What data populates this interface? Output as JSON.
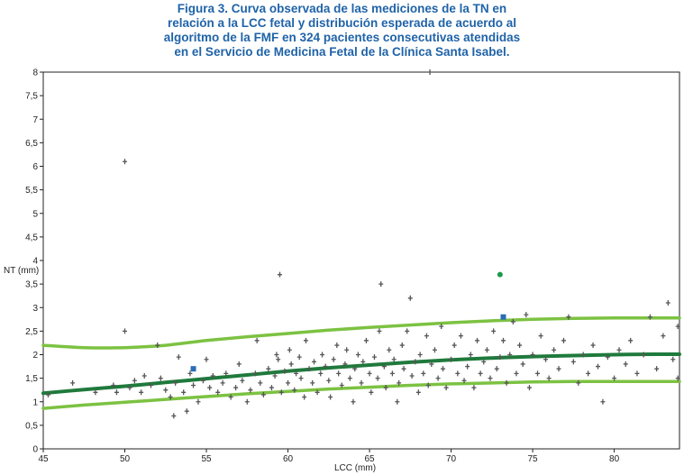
{
  "caption": {
    "lines": [
      "Figura 3. Curva observada de las mediciones de la TN en",
      "relación a la LCC fetal y distribución esperada de acuerdo al",
      "algoritmo de la FMF en 324 pacientes consecutivas atendidas",
      "en el Servicio de Medicina Fetal de la Clínica Santa Isabel."
    ]
  },
  "chart_data": {
    "type": "scatter",
    "title": "Figura 3. Curva observada de las mediciones de la TN en relación a la LCC fetal y distribución esperada de acuerdo al algoritmo de la FMF en 324 pacientes consecutivas atendidas en el Servicio de Medicina Fetal de la Clínica Santa Isabel.",
    "xlabel": "LCC (mm)",
    "ylabel": "NT (mm)",
    "xlim": [
      45,
      84
    ],
    "ylim": [
      0,
      8
    ],
    "x_ticks": [
      "45",
      "50",
      "55",
      "60",
      "65",
      "70",
      "75",
      "80"
    ],
    "x_tick_values": [
      45,
      50,
      55,
      60,
      65,
      70,
      75,
      80
    ],
    "y_ticks": [
      "0",
      "0,5",
      "1",
      "1,5",
      "2",
      "2,5",
      "3",
      "3,5",
      "4",
      "4,5",
      "5",
      "5,5",
      "6",
      "6,5",
      "7",
      "7,5",
      "8"
    ],
    "y_tick_values": [
      0,
      0.5,
      1,
      1.5,
      2,
      2.5,
      3,
      3.5,
      4,
      4.5,
      5,
      5.5,
      6,
      6.5,
      7,
      7.5,
      8
    ],
    "grid": false,
    "colors": {
      "points": "#555555",
      "median_curve": "#1f7a3c",
      "band_curves": "#7cc242",
      "highlight_square": "#2a6db5",
      "highlight_circle": "#1f9a4a",
      "caption": "#1f63a8"
    },
    "curves": [
      {
        "role": "upper",
        "x": [
          45,
          47.5,
          50,
          52.5,
          55,
          57.5,
          60,
          62.5,
          65,
          67.5,
          70,
          72.5,
          75,
          77.5,
          80,
          82.5,
          84
        ],
        "y": [
          2.2,
          2.15,
          2.15,
          2.2,
          2.3,
          2.38,
          2.45,
          2.52,
          2.58,
          2.63,
          2.68,
          2.72,
          2.75,
          2.77,
          2.78,
          2.78,
          2.78
        ]
      },
      {
        "role": "median",
        "x": [
          45,
          47.5,
          50,
          52.5,
          55,
          57.5,
          60,
          62.5,
          65,
          67.5,
          70,
          72.5,
          75,
          77.5,
          80,
          82.5,
          84
        ],
        "y": [
          1.18,
          1.26,
          1.33,
          1.41,
          1.49,
          1.57,
          1.65,
          1.72,
          1.78,
          1.84,
          1.89,
          1.93,
          1.96,
          1.98,
          2.0,
          2.01,
          2.01
        ]
      },
      {
        "role": "lower",
        "x": [
          45,
          47.5,
          50,
          52.5,
          55,
          57.5,
          60,
          62.5,
          65,
          67.5,
          70,
          72.5,
          75,
          77.5,
          80,
          82.5,
          84
        ],
        "y": [
          0.86,
          0.93,
          0.99,
          1.05,
          1.11,
          1.17,
          1.22,
          1.27,
          1.31,
          1.35,
          1.38,
          1.4,
          1.42,
          1.43,
          1.43,
          1.43,
          1.43
        ]
      }
    ],
    "points": [
      {
        "x": 45.3,
        "y": 1.15
      },
      {
        "x": 46.8,
        "y": 1.4
      },
      {
        "x": 48.2,
        "y": 1.2
      },
      {
        "x": 49.3,
        "y": 1.35
      },
      {
        "x": 49.5,
        "y": 1.2
      },
      {
        "x": 50.0,
        "y": 6.1
      },
      {
        "x": 50.0,
        "y": 2.5
      },
      {
        "x": 50.3,
        "y": 1.3
      },
      {
        "x": 50.6,
        "y": 1.45
      },
      {
        "x": 51.0,
        "y": 1.2
      },
      {
        "x": 51.2,
        "y": 1.55
      },
      {
        "x": 51.6,
        "y": 1.35
      },
      {
        "x": 52.0,
        "y": 2.2
      },
      {
        "x": 52.2,
        "y": 1.5
      },
      {
        "x": 52.5,
        "y": 1.25
      },
      {
        "x": 52.8,
        "y": 1.1
      },
      {
        "x": 53.0,
        "y": 0.7
      },
      {
        "x": 53.1,
        "y": 1.4
      },
      {
        "x": 53.3,
        "y": 1.95
      },
      {
        "x": 53.6,
        "y": 1.2
      },
      {
        "x": 53.8,
        "y": 0.8
      },
      {
        "x": 54.0,
        "y": 1.6
      },
      {
        "x": 54.2,
        "y": 1.35
      },
      {
        "x": 54.5,
        "y": 1.0
      },
      {
        "x": 54.8,
        "y": 1.45
      },
      {
        "x": 55.0,
        "y": 1.9
      },
      {
        "x": 55.2,
        "y": 1.3
      },
      {
        "x": 55.4,
        "y": 1.55
      },
      {
        "x": 55.7,
        "y": 1.2
      },
      {
        "x": 56.0,
        "y": 1.4
      },
      {
        "x": 56.2,
        "y": 1.6
      },
      {
        "x": 56.5,
        "y": 1.1
      },
      {
        "x": 56.8,
        "y": 1.3
      },
      {
        "x": 57.0,
        "y": 1.8
      },
      {
        "x": 57.2,
        "y": 1.45
      },
      {
        "x": 57.5,
        "y": 1.0
      },
      {
        "x": 57.7,
        "y": 1.25
      },
      {
        "x": 58.0,
        "y": 1.6
      },
      {
        "x": 58.1,
        "y": 2.3
      },
      {
        "x": 58.3,
        "y": 1.4
      },
      {
        "x": 58.5,
        "y": 1.15
      },
      {
        "x": 58.8,
        "y": 1.7
      },
      {
        "x": 59.0,
        "y": 1.3
      },
      {
        "x": 59.2,
        "y": 1.55
      },
      {
        "x": 59.3,
        "y": 2.0
      },
      {
        "x": 59.4,
        "y": 1.9
      },
      {
        "x": 59.5,
        "y": 3.7
      },
      {
        "x": 59.6,
        "y": 1.2
      },
      {
        "x": 59.8,
        "y": 1.65
      },
      {
        "x": 60.0,
        "y": 1.4
      },
      {
        "x": 60.1,
        "y": 2.1
      },
      {
        "x": 60.2,
        "y": 1.8
      },
      {
        "x": 60.4,
        "y": 1.25
      },
      {
        "x": 60.5,
        "y": 1.6
      },
      {
        "x": 60.7,
        "y": 1.95
      },
      {
        "x": 60.8,
        "y": 1.5
      },
      {
        "x": 61.0,
        "y": 1.1
      },
      {
        "x": 61.1,
        "y": 2.3
      },
      {
        "x": 61.3,
        "y": 1.7
      },
      {
        "x": 61.5,
        "y": 1.4
      },
      {
        "x": 61.6,
        "y": 1.85
      },
      {
        "x": 61.8,
        "y": 1.2
      },
      {
        "x": 62.0,
        "y": 1.6
      },
      {
        "x": 62.1,
        "y": 2.0
      },
      {
        "x": 62.3,
        "y": 1.75
      },
      {
        "x": 62.5,
        "y": 1.45
      },
      {
        "x": 62.6,
        "y": 1.1
      },
      {
        "x": 62.8,
        "y": 1.9
      },
      {
        "x": 63.0,
        "y": 2.2
      },
      {
        "x": 63.1,
        "y": 1.6
      },
      {
        "x": 63.3,
        "y": 1.35
      },
      {
        "x": 63.5,
        "y": 1.8
      },
      {
        "x": 63.6,
        "y": 2.1
      },
      {
        "x": 63.8,
        "y": 1.5
      },
      {
        "x": 64.0,
        "y": 1.0
      },
      {
        "x": 64.1,
        "y": 1.7
      },
      {
        "x": 64.3,
        "y": 2.0
      },
      {
        "x": 64.5,
        "y": 1.4
      },
      {
        "x": 64.6,
        "y": 1.85
      },
      {
        "x": 64.8,
        "y": 2.3
      },
      {
        "x": 65.0,
        "y": 1.6
      },
      {
        "x": 65.1,
        "y": 1.2
      },
      {
        "x": 65.3,
        "y": 1.95
      },
      {
        "x": 65.5,
        "y": 1.5
      },
      {
        "x": 65.6,
        "y": 2.5
      },
      {
        "x": 65.7,
        "y": 3.5
      },
      {
        "x": 65.9,
        "y": 1.75
      },
      {
        "x": 66.0,
        "y": 1.3
      },
      {
        "x": 66.2,
        "y": 2.1
      },
      {
        "x": 66.4,
        "y": 1.6
      },
      {
        "x": 66.5,
        "y": 1.9
      },
      {
        "x": 66.7,
        "y": 1.0
      },
      {
        "x": 66.8,
        "y": 1.4
      },
      {
        "x": 67.0,
        "y": 2.2
      },
      {
        "x": 67.1,
        "y": 1.7
      },
      {
        "x": 67.3,
        "y": 2.5
      },
      {
        "x": 67.5,
        "y": 3.2
      },
      {
        "x": 67.6,
        "y": 1.55
      },
      {
        "x": 67.8,
        "y": 1.85
      },
      {
        "x": 68.0,
        "y": 1.2
      },
      {
        "x": 68.1,
        "y": 2.0
      },
      {
        "x": 68.3,
        "y": 1.6
      },
      {
        "x": 68.5,
        "y": 2.4
      },
      {
        "x": 68.6,
        "y": 1.35
      },
      {
        "x": 68.8,
        "y": 1.8
      },
      {
        "x": 69.0,
        "y": 2.1
      },
      {
        "x": 69.2,
        "y": 1.5
      },
      {
        "x": 69.4,
        "y": 2.6
      },
      {
        "x": 69.5,
        "y": 1.7
      },
      {
        "x": 69.7,
        "y": 1.3
      },
      {
        "x": 70.0,
        "y": 1.9
      },
      {
        "x": 70.2,
        "y": 2.2
      },
      {
        "x": 70.4,
        "y": 1.6
      },
      {
        "x": 70.6,
        "y": 2.4
      },
      {
        "x": 70.8,
        "y": 1.45
      },
      {
        "x": 71.0,
        "y": 1.75
      },
      {
        "x": 71.2,
        "y": 2.0
      },
      {
        "x": 71.4,
        "y": 1.3
      },
      {
        "x": 71.6,
        "y": 2.3
      },
      {
        "x": 71.8,
        "y": 1.6
      },
      {
        "x": 72.0,
        "y": 1.85
      },
      {
        "x": 72.2,
        "y": 2.1
      },
      {
        "x": 72.4,
        "y": 1.5
      },
      {
        "x": 72.6,
        "y": 2.5
      },
      {
        "x": 72.8,
        "y": 1.7
      },
      {
        "x": 73.0,
        "y": 1.95
      },
      {
        "x": 73.2,
        "y": 2.3
      },
      {
        "x": 73.4,
        "y": 1.4
      },
      {
        "x": 73.6,
        "y": 2.0
      },
      {
        "x": 73.8,
        "y": 2.7
      },
      {
        "x": 74.0,
        "y": 1.6
      },
      {
        "x": 74.2,
        "y": 2.2
      },
      {
        "x": 74.4,
        "y": 1.8
      },
      {
        "x": 74.6,
        "y": 2.85
      },
      {
        "x": 74.8,
        "y": 1.3
      },
      {
        "x": 75.0,
        "y": 2.0
      },
      {
        "x": 75.3,
        "y": 1.6
      },
      {
        "x": 75.5,
        "y": 2.4
      },
      {
        "x": 75.8,
        "y": 1.9
      },
      {
        "x": 76.0,
        "y": 1.5
      },
      {
        "x": 76.3,
        "y": 2.1
      },
      {
        "x": 76.6,
        "y": 1.7
      },
      {
        "x": 76.9,
        "y": 2.3
      },
      {
        "x": 77.2,
        "y": 2.8
      },
      {
        "x": 77.5,
        "y": 1.85
      },
      {
        "x": 77.8,
        "y": 1.4
      },
      {
        "x": 78.1,
        "y": 2.0
      },
      {
        "x": 78.4,
        "y": 1.6
      },
      {
        "x": 78.7,
        "y": 2.2
      },
      {
        "x": 79.0,
        "y": 1.75
      },
      {
        "x": 79.3,
        "y": 1.0
      },
      {
        "x": 79.6,
        "y": 1.95
      },
      {
        "x": 80.0,
        "y": 1.5
      },
      {
        "x": 80.3,
        "y": 2.1
      },
      {
        "x": 80.7,
        "y": 1.8
      },
      {
        "x": 81.0,
        "y": 2.3
      },
      {
        "x": 81.4,
        "y": 1.6
      },
      {
        "x": 81.8,
        "y": 2.0
      },
      {
        "x": 82.2,
        "y": 2.8
      },
      {
        "x": 82.6,
        "y": 1.7
      },
      {
        "x": 83.0,
        "y": 2.4
      },
      {
        "x": 83.3,
        "y": 3.1
      },
      {
        "x": 83.6,
        "y": 1.9
      },
      {
        "x": 83.9,
        "y": 2.6
      },
      {
        "x": 83.9,
        "y": 1.5
      },
      {
        "x": 68.7,
        "y": 8.0
      }
    ],
    "highlight_squares": [
      {
        "x": 54.2,
        "y": 1.7
      },
      {
        "x": 73.2,
        "y": 2.8
      }
    ],
    "highlight_circles": [
      {
        "x": 73.0,
        "y": 3.7
      }
    ]
  }
}
